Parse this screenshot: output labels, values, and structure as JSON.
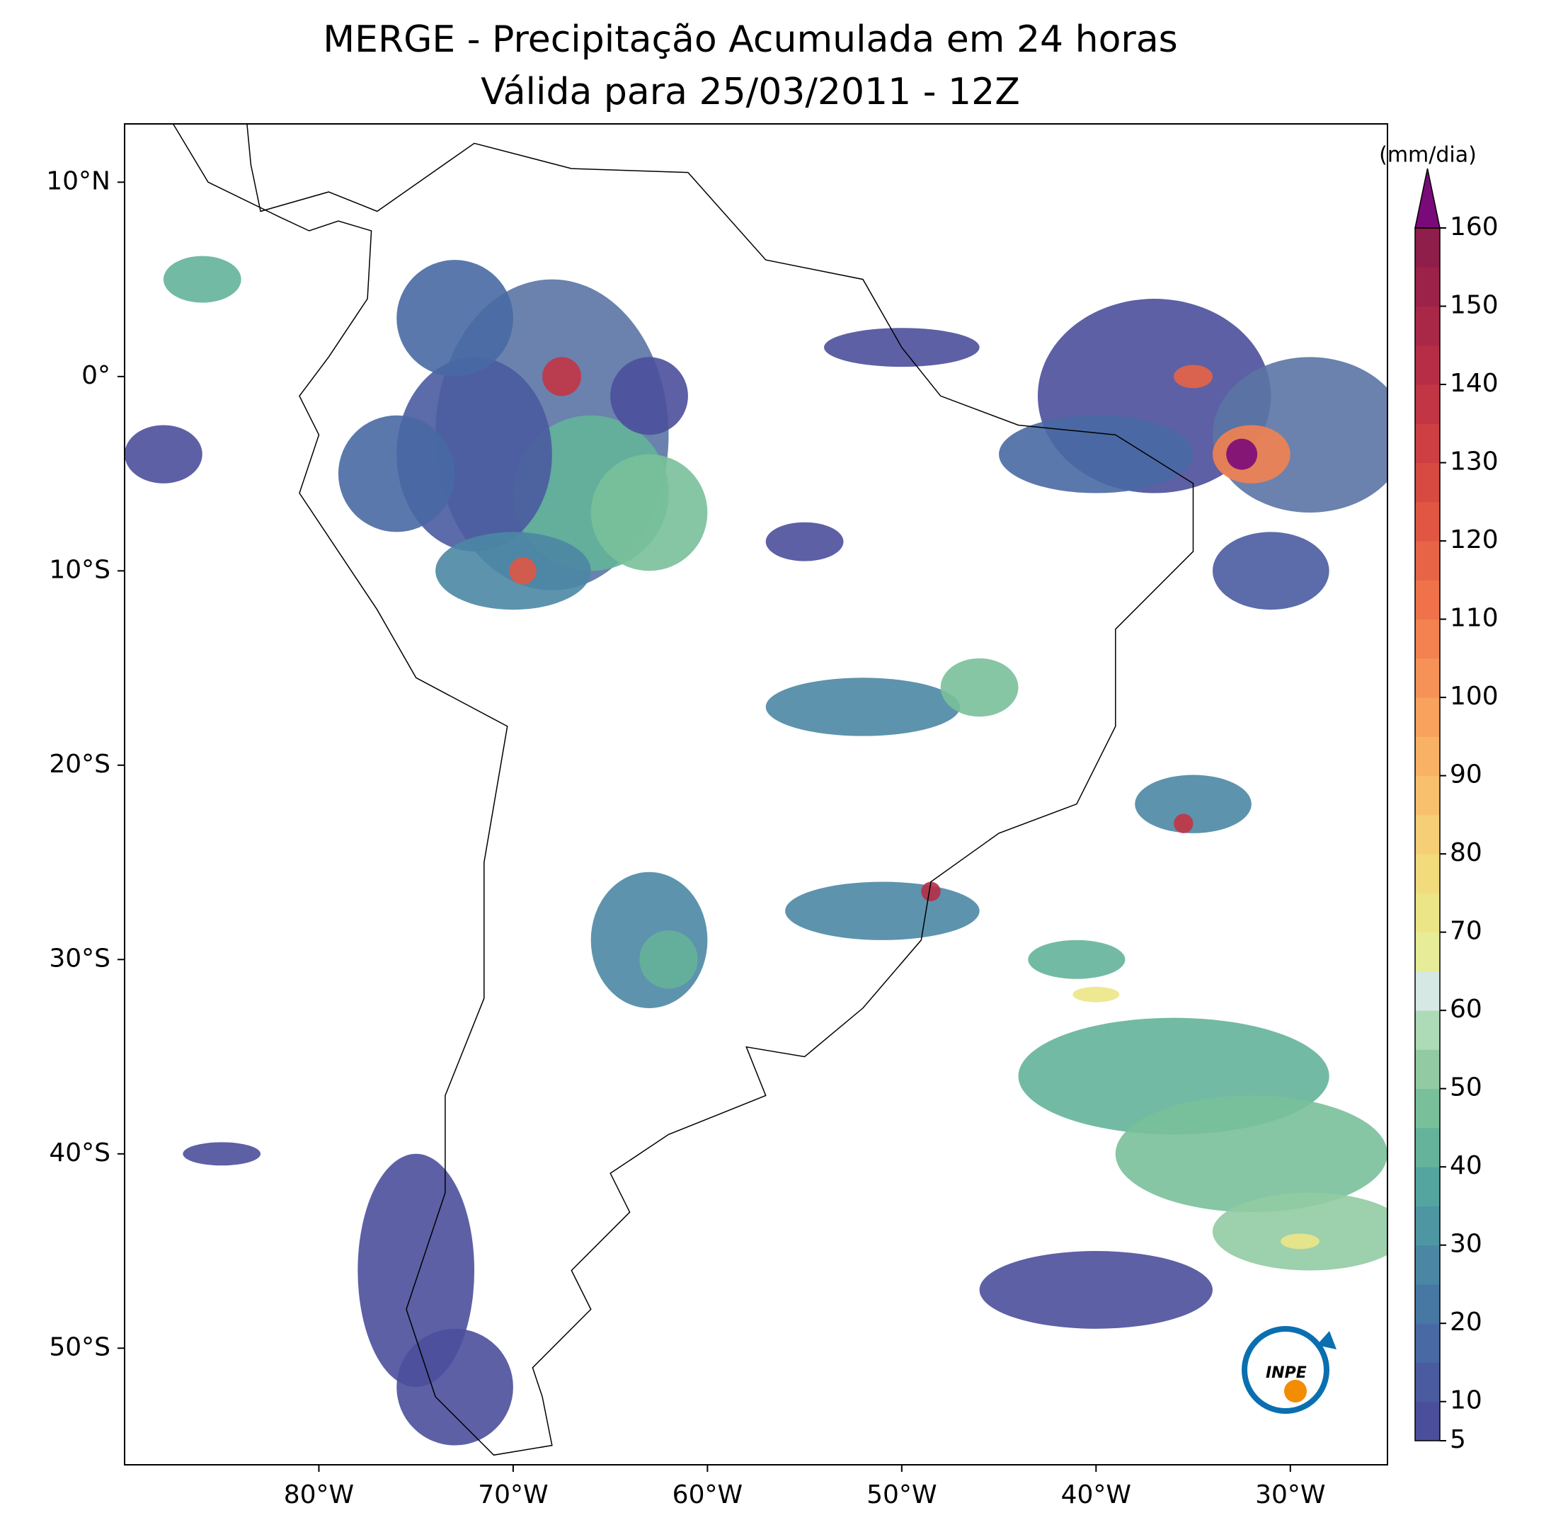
{
  "title": "MERGE - Precipitação Acumulada em 24 horas",
  "subtitle": "Válida para 25/03/2011 - 12Z",
  "map": {
    "xlim": [
      -90,
      -25
    ],
    "ylim": [
      -56,
      13
    ],
    "xticks": [
      {
        "value": -80,
        "label": "80°W"
      },
      {
        "value": -70,
        "label": "70°W"
      },
      {
        "value": -60,
        "label": "60°W"
      },
      {
        "value": -50,
        "label": "50°W"
      },
      {
        "value": -40,
        "label": "40°W"
      },
      {
        "value": -30,
        "label": "30°W"
      }
    ],
    "yticks": [
      {
        "value": 10,
        "label": "10°N"
      },
      {
        "value": 0,
        "label": "0°"
      },
      {
        "value": -10,
        "label": "10°S"
      },
      {
        "value": -20,
        "label": "20°S"
      },
      {
        "value": -30,
        "label": "30°S"
      },
      {
        "value": -40,
        "label": "40°S"
      },
      {
        "value": -50,
        "label": "50°S"
      }
    ]
  },
  "colorbar": {
    "unit": "(mm/dia)",
    "lim": [
      5,
      160
    ],
    "ticks": [
      5,
      10,
      20,
      30,
      40,
      50,
      60,
      70,
      80,
      90,
      100,
      110,
      120,
      130,
      140,
      150,
      160
    ],
    "colors": [
      "#4b4f9b",
      "#4a5ba0",
      "#4869a3",
      "#4778a4",
      "#4b87a4",
      "#4f96a3",
      "#55a59f",
      "#64b39a",
      "#79c09a",
      "#92cba3",
      "#addab7",
      "#d6e8e4",
      "#e6ec98",
      "#ece587",
      "#f1db7c",
      "#f5ce75",
      "#f8c06d",
      "#f9b166",
      "#f8a25e",
      "#f69257",
      "#f38250",
      "#ef724a",
      "#e86446",
      "#e05643",
      "#d74a42",
      "#cd3f42",
      "#c23544",
      "#b62e46",
      "#a92848",
      "#9c2249",
      "#8f1e4b"
    ],
    "extend_color": "#7a0a7a"
  },
  "logo": "INPE"
}
